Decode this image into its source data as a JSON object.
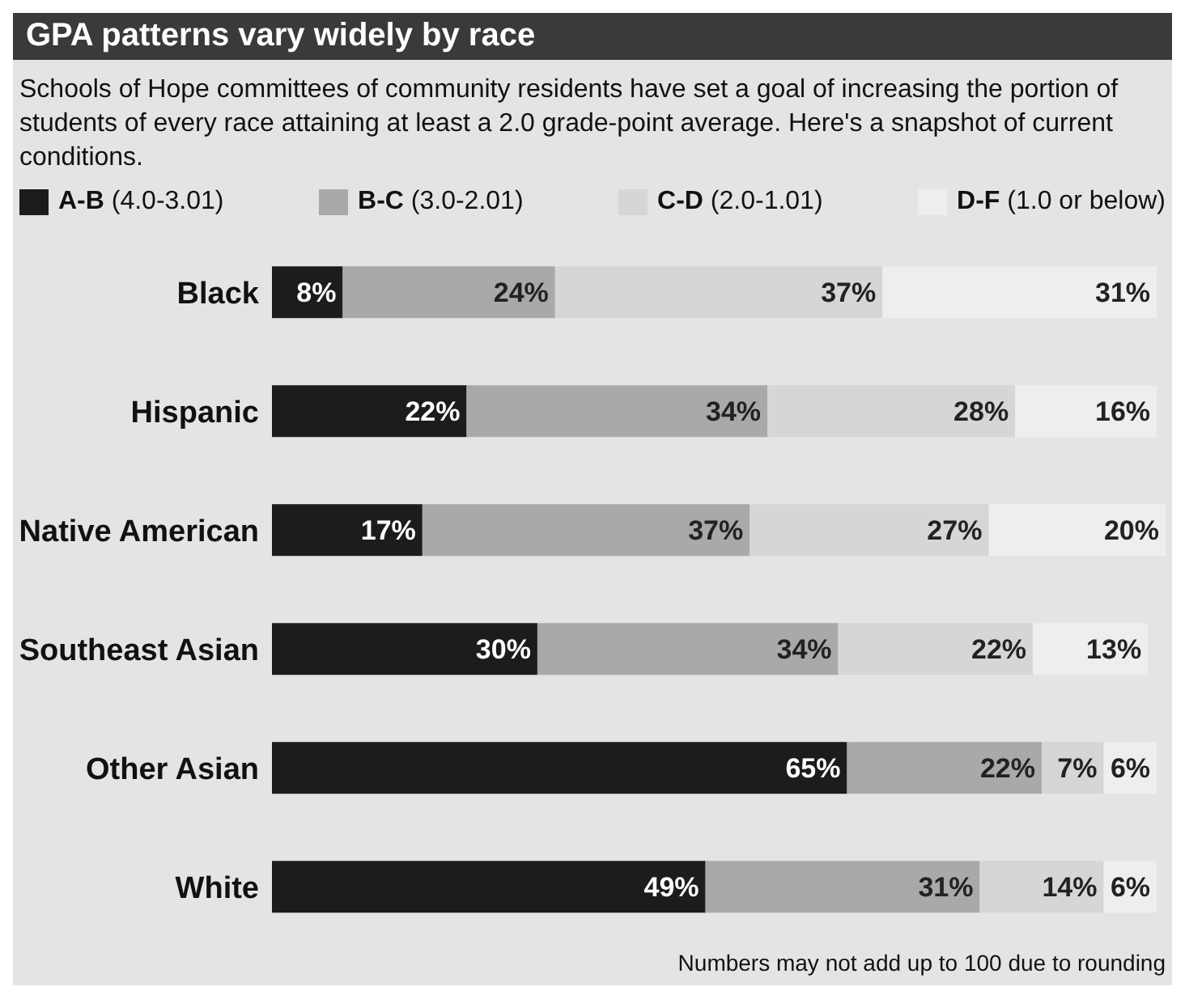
{
  "chart_data": {
    "type": "bar",
    "orientation": "horizontal",
    "stacked": true,
    "title": "GPA patterns vary widely by race",
    "subtitle": "Schools of Hope committees of community residents have set a goal of increasing the portion of students of every race attaining at least a 2.0 grade-point average. Here's a snapshot of current conditions.",
    "categories": [
      "Black",
      "Hispanic",
      "Native American",
      "Southeast Asian",
      "Other Asian",
      "White"
    ],
    "series": [
      {
        "name": "A-B (4.0-3.01)",
        "color": "#1c1c1c",
        "values": [
          8,
          22,
          17,
          30,
          65,
          49
        ],
        "value_labels": [
          "8%",
          "22%",
          "17%",
          "30%",
          "65%",
          "49%"
        ]
      },
      {
        "name": "B-C (3.0-2.01)",
        "color": "#a9a9a9",
        "values": [
          24,
          34,
          37,
          34,
          22,
          31
        ],
        "value_labels": [
          "24%",
          "34%",
          "37%",
          "34%",
          "22%",
          "31%"
        ]
      },
      {
        "name": "C-D (2.0-1.01)",
        "color": "#d6d6d6",
        "values": [
          37,
          28,
          27,
          22,
          7,
          14
        ],
        "value_labels": [
          "37%",
          "28%",
          "27%",
          "22%",
          "7%",
          "14%"
        ]
      },
      {
        "name": "D-F (1.0 or below)",
        "color": "#eeeeee",
        "values": [
          31,
          16,
          20,
          13,
          6,
          6
        ],
        "value_labels": [
          "31%",
          "16%",
          "20%",
          "13%",
          "6%",
          "6%"
        ]
      }
    ],
    "legend": "top",
    "annotations": [
      "Numbers may not add up to 100 due to rounding"
    ]
  }
}
